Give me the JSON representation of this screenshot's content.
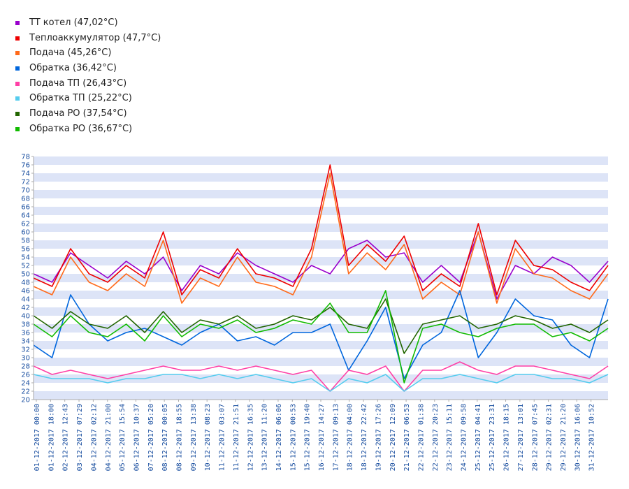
{
  "legend": [
    {
      "label": "TT котел (47,02°C)",
      "color": "#9900cc"
    },
    {
      "label": "Теплоаккумулятор (47,7°C)",
      "color": "#ee0000"
    },
    {
      "label": "Подача (45,26°C)",
      "color": "#ff6a1a"
    },
    {
      "label": "Обратка (36,42°C)",
      "color": "#0066dd"
    },
    {
      "label": "Подача ТП (26,43°C)",
      "color": "#ff3fa6"
    },
    {
      "label": "Обратка ТП (25,22°C)",
      "color": "#55ccee"
    },
    {
      "label": "Подача РО (37,54°C)",
      "color": "#226600"
    },
    {
      "label": "Обратка РО (36,67°C)",
      "color": "#11bb00"
    }
  ],
  "chart_data": {
    "type": "line",
    "title": "",
    "xlabel": "",
    "ylabel": "",
    "ylim": [
      20,
      78
    ],
    "y_ticks": [
      20,
      22,
      24,
      26,
      28,
      30,
      32,
      34,
      36,
      38,
      40,
      42,
      44,
      46,
      48,
      50,
      52,
      54,
      56,
      58,
      60,
      62,
      64,
      66,
      68,
      70,
      72,
      74,
      76,
      78
    ],
    "x_tick_labels": [
      "01-12-2017 00:00",
      "01-12-2017 18:00",
      "02-12-2017 12:43",
      "03-12-2017 07:29",
      "04-12-2017 02:12",
      "04-12-2017 21:00",
      "05-12-2017 15:54",
      "06-12-2017 10:37",
      "07-12-2017 05:20",
      "08-12-2017 00:05",
      "08-12-2017 18:55",
      "09-12-2017 13:38",
      "10-12-2017 08:23",
      "11-12-2017 03:07",
      "11-12-2017 21:51",
      "12-12-2017 16:35",
      "13-12-2017 11:20",
      "14-12-2017 06:06",
      "15-12-2017 00:53",
      "15-12-2017 19:40",
      "16-12-2017 14:27",
      "17-12-2017 09:13",
      "18-12-2017 04:00",
      "18-12-2017 22:42",
      "19-12-2017 17:26",
      "20-12-2017 12:09",
      "21-12-2017 06:53",
      "22-12-2017 01:38",
      "22-12-2017 20:23",
      "23-12-2017 15:11",
      "24-12-2017 09:58",
      "25-12-2017 04:41",
      "25-12-2017 23:31",
      "26-12-2017 18:15",
      "27-12-2017 13:01",
      "28-12-2017 07:45",
      "29-12-2017 02:31",
      "29-12-2017 21:20",
      "30-12-2017 16:06",
      "31-12-2017 10:52"
    ],
    "x_tick_display": [
      "01-12-2017  00:00",
      "01-12-2017  18:00",
      "02-12-2017  12:43",
      "03-12-2017  07:29",
      "04-12-2017  02:12",
      "04-12-2017  21:00",
      "05-12-2017  15:54",
      "06-12-2017  10:37",
      "07-12-2017  05:20",
      "08-12-2017  00:05",
      "08-12-2017  18:55",
      "09-12-2017  13:38",
      "10-12-2017  08:23",
      "11-12-2017  03:07",
      "11-12-2017  21:51",
      "12-12-2017  16:35",
      "13-12-2017  11:20",
      "14-12-2017  06:06",
      "15-12-2017  00:53",
      "15-12-2017  19:40",
      "16-12-2017  14:27",
      "17-12-2017  09:13",
      "18-12-2017  04:00",
      "18-12-2017  22:42",
      "19-12-2017  17:26",
      "20-12-2017  12:09",
      "21-12-2017  06:53",
      "22-12-2017  01:38",
      "22-12-2017  20:23",
      "23-12-2017  15:11",
      "24-12-2017  09:58",
      "25-12-2017  04:41",
      "25-12-2017  23:31",
      "26-12-2017  18:15",
      "27-12-2017  13:01",
      "28-12-2017  07:45",
      "29-12-2017  02:31",
      "29-12-2017  21:20",
      "30-12-2017  16:06",
      "31-12-2017  10:52"
    ],
    "x": [
      "2017-12-01 00:00",
      "2017-12-02 00:00",
      "2017-12-03 00:00",
      "2017-12-04 00:00",
      "2017-12-05 00:00",
      "2017-12-06 00:00",
      "2017-12-07 00:00",
      "2017-12-08 00:00",
      "2017-12-09 00:00",
      "2017-12-10 00:00",
      "2017-12-11 00:00",
      "2017-12-12 00:00",
      "2017-12-13 00:00",
      "2017-12-14 00:00",
      "2017-12-15 00:00",
      "2017-12-16 00:00",
      "2017-12-17 00:00",
      "2017-12-18 00:00",
      "2017-12-19 00:00",
      "2017-12-20 00:00",
      "2017-12-21 00:00",
      "2017-12-22 00:00",
      "2017-12-23 00:00",
      "2017-12-24 00:00",
      "2017-12-25 00:00",
      "2017-12-26 00:00",
      "2017-12-27 00:00",
      "2017-12-28 00:00",
      "2017-12-29 00:00",
      "2017-12-30 00:00",
      "2017-12-31 00:00",
      "2017-12-31 23:59"
    ],
    "series": [
      {
        "name": "TT котел",
        "color": "#9900cc",
        "values": [
          50,
          48,
          55,
          52,
          49,
          53,
          50,
          54,
          46,
          52,
          50,
          55,
          52,
          50,
          48,
          52,
          50,
          56,
          58,
          54,
          55,
          48,
          52,
          48,
          60,
          44,
          52,
          50,
          54,
          52,
          48,
          53
        ]
      },
      {
        "name": "Теплоаккумулятор",
        "color": "#ee0000",
        "values": [
          49,
          47,
          56,
          50,
          48,
          52,
          49,
          60,
          45,
          51,
          49,
          56,
          50,
          49,
          47,
          56,
          76,
          52,
          57,
          53,
          59,
          46,
          50,
          47,
          62,
          45,
          58,
          52,
          51,
          48,
          46,
          52
        ]
      },
      {
        "name": "Подача",
        "color": "#ff6a1a",
        "values": [
          47,
          45,
          54,
          48,
          46,
          50,
          47,
          58,
          43,
          49,
          47,
          54,
          48,
          47,
          45,
          54,
          74,
          50,
          55,
          51,
          57,
          44,
          48,
          45,
          60,
          43,
          56,
          50,
          49,
          46,
          44,
          50
        ]
      },
      {
        "name": "Обратка",
        "color": "#0066dd",
        "values": [
          33,
          30,
          45,
          38,
          34,
          36,
          37,
          35,
          33,
          36,
          38,
          34,
          35,
          33,
          36,
          36,
          38,
          27,
          34,
          42,
          25,
          33,
          36,
          46,
          30,
          36,
          44,
          40,
          39,
          33,
          30,
          44
        ]
      },
      {
        "name": "Подача ТП",
        "color": "#ff3fa6",
        "values": [
          28,
          26,
          27,
          26,
          25,
          26,
          27,
          28,
          27,
          27,
          28,
          27,
          28,
          27,
          26,
          27,
          22,
          27,
          26,
          28,
          22,
          27,
          27,
          29,
          27,
          26,
          28,
          28,
          27,
          26,
          25,
          28
        ]
      },
      {
        "name": "Обратка ТП",
        "color": "#55ccee",
        "values": [
          26,
          25,
          25,
          25,
          24,
          25,
          25,
          26,
          26,
          25,
          26,
          25,
          26,
          25,
          24,
          25,
          22,
          25,
          24,
          26,
          22,
          25,
          25,
          26,
          25,
          24,
          26,
          26,
          25,
          25,
          24,
          26
        ]
      },
      {
        "name": "Подача РО",
        "color": "#226600",
        "values": [
          40,
          37,
          41,
          38,
          37,
          40,
          36,
          41,
          36,
          39,
          38,
          40,
          37,
          38,
          40,
          39,
          42,
          38,
          37,
          44,
          31,
          38,
          39,
          40,
          37,
          38,
          40,
          39,
          37,
          38,
          36,
          39
        ]
      },
      {
        "name": "Обратка РО",
        "color": "#11bb00",
        "values": [
          38,
          35,
          40,
          36,
          35,
          38,
          34,
          40,
          35,
          38,
          37,
          39,
          36,
          37,
          39,
          38,
          43,
          36,
          36,
          46,
          24,
          37,
          38,
          36,
          35,
          37,
          38,
          38,
          35,
          36,
          34,
          37
        ]
      }
    ],
    "grid": true,
    "legend_position": "top-left"
  }
}
